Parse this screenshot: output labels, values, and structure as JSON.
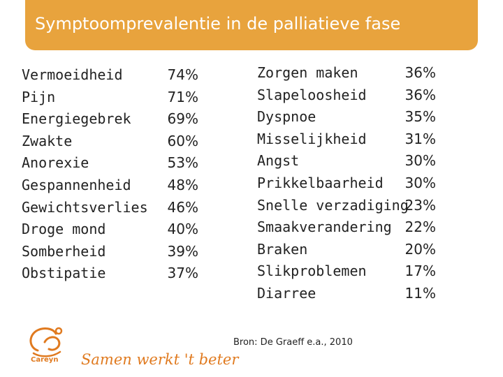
{
  "title": "Symptoomprevalentie in de palliatieve fase",
  "left_column": [
    {
      "symptom": "Vermoeidheid",
      "percent": "74%"
    },
    {
      "symptom": "Pijn",
      "percent": "71%"
    },
    {
      "symptom": "Energiegebrek",
      "percent": "69%"
    },
    {
      "symptom": "Zwakte",
      "percent": "60%"
    },
    {
      "symptom": "Anorexie",
      "percent": "53%"
    },
    {
      "symptom": "Gespannenheid",
      "percent": "48%"
    },
    {
      "symptom": "Gewichtsverlies",
      "percent": "46%"
    },
    {
      "symptom": "Droge mond",
      "percent": "40%"
    },
    {
      "symptom": "Somberheid",
      "percent": "39%"
    },
    {
      "symptom": "Obstipatie",
      "percent": "37%"
    }
  ],
  "right_column": [
    {
      "symptom": "Zorgen maken",
      "percent": "36%"
    },
    {
      "symptom": "Slapeloosheid",
      "percent": "36%"
    },
    {
      "symptom": "Dyspnoe",
      "percent": "35%"
    },
    {
      "symptom": "Misselijkheid",
      "percent": "31%"
    },
    {
      "symptom": "Angst",
      "percent": "30%"
    },
    {
      "symptom": "Prikkelbaarheid",
      "percent": "30%"
    },
    {
      "symptom": "Snelle verzadiging",
      "percent": "23%"
    },
    {
      "symptom": "Smaakverandering",
      "percent": "22%"
    },
    {
      "symptom": "Braken",
      "percent": "20%"
    },
    {
      "symptom": "Slikproblemen",
      "percent": "17%"
    },
    {
      "symptom": "Diarree",
      "percent": "11%"
    }
  ],
  "source": "Bron: De Graeff e.a., 2010",
  "logo": {
    "name": "Careyn",
    "icon": "careyn-logo-icon"
  },
  "slogan": "Samen werkt 't beter",
  "colors": {
    "title_bar": "#e8a33d",
    "brand": "#e07a1f"
  }
}
